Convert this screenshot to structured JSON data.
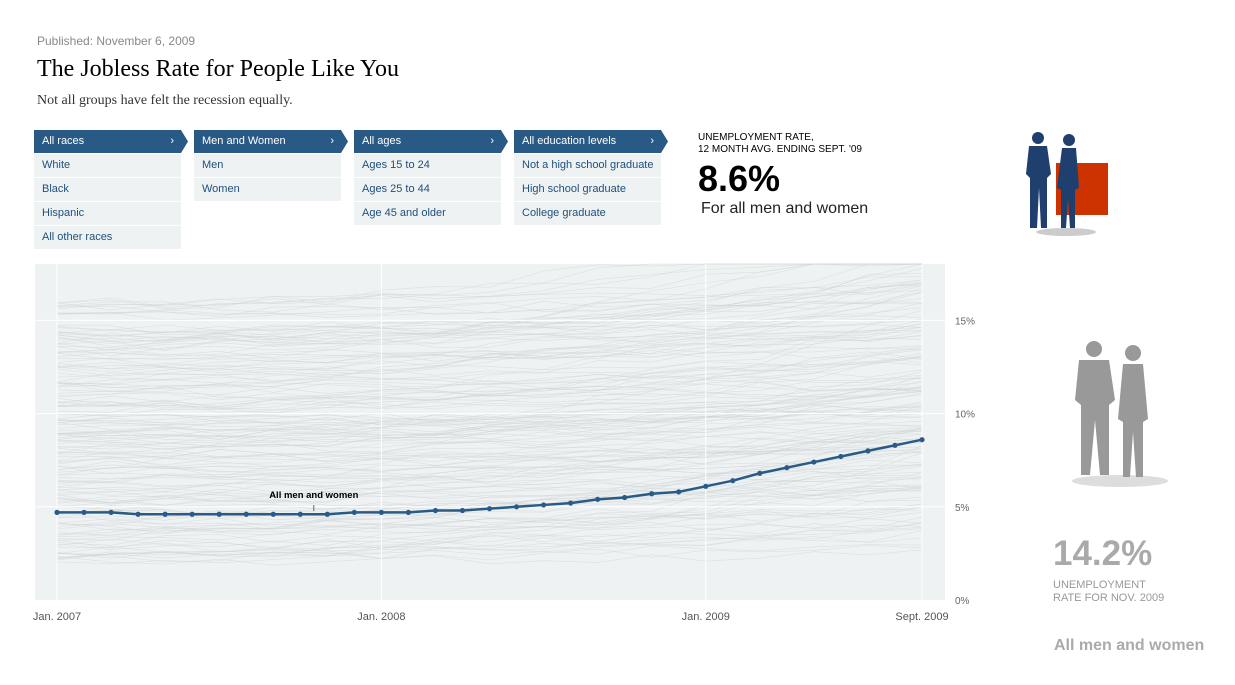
{
  "header": {
    "published": "Published: November 6, 2009",
    "title": "The Jobless Rate for People Like You",
    "subtitle": "Not all groups have felt the recession equally."
  },
  "filters": [
    {
      "selected": "All races",
      "options": [
        "White",
        "Black",
        "Hispanic",
        "All other races"
      ]
    },
    {
      "selected": "Men and Women",
      "options": [
        "Men",
        "Women"
      ]
    },
    {
      "selected": "All ages",
      "options": [
        "Ages 15 to 24",
        "Ages 25 to 44",
        "Age 45 and older"
      ]
    },
    {
      "selected": "All education levels",
      "options": [
        "Not a high school graduate",
        "High school graduate",
        "College graduate"
      ]
    }
  ],
  "chevron": "›",
  "summary": {
    "label_line1": "UNEMPLOYMENT RATE,",
    "label_line2": "12 MONTH AVG. ENDING SEPT. '09",
    "value": "8.6%",
    "description": "For all men and women"
  },
  "highest": {
    "value": "14.2%",
    "label_line1": "UNEMPLOYMENT",
    "label_line2": "RATE FOR NOV. 2009",
    "group": "All men and women"
  },
  "colors": {
    "accent": "#285a85",
    "line": "#2a5b86",
    "highlight_box": "#cc3300",
    "figure_selected": "#1f3f6e",
    "figure_gray": "#999999",
    "plot_bg": "#eef2f3"
  },
  "chart_data": {
    "type": "line",
    "title": "",
    "xlabel": "",
    "ylabel": "",
    "ylim": [
      0,
      18
    ],
    "y_ticks": [
      {
        "value": 0,
        "label": "0%"
      },
      {
        "value": 5,
        "label": "5%"
      },
      {
        "value": 10,
        "label": "10%"
      },
      {
        "value": 15,
        "label": "15%"
      }
    ],
    "x_ticks": [
      {
        "month": 0,
        "label": "Jan. 2007"
      },
      {
        "month": 12,
        "label": "Jan. 2008"
      },
      {
        "month": 24,
        "label": "Jan. 2009"
      },
      {
        "month": 32,
        "label": "Sept. 2009"
      }
    ],
    "grid": true,
    "series": [
      {
        "name": "All men and women",
        "start": "Jan. 2007",
        "end": "Sept. 2009",
        "frequency": "monthly",
        "values": [
          4.7,
          4.7,
          4.7,
          4.6,
          4.6,
          4.6,
          4.6,
          4.6,
          4.6,
          4.6,
          4.6,
          4.7,
          4.7,
          4.7,
          4.8,
          4.8,
          4.9,
          5.0,
          5.1,
          5.2,
          5.4,
          5.5,
          5.7,
          5.8,
          6.1,
          6.4,
          6.8,
          7.1,
          7.4,
          7.7,
          8.0,
          8.3,
          8.6
        ]
      }
    ],
    "annotation": "All men and women"
  }
}
